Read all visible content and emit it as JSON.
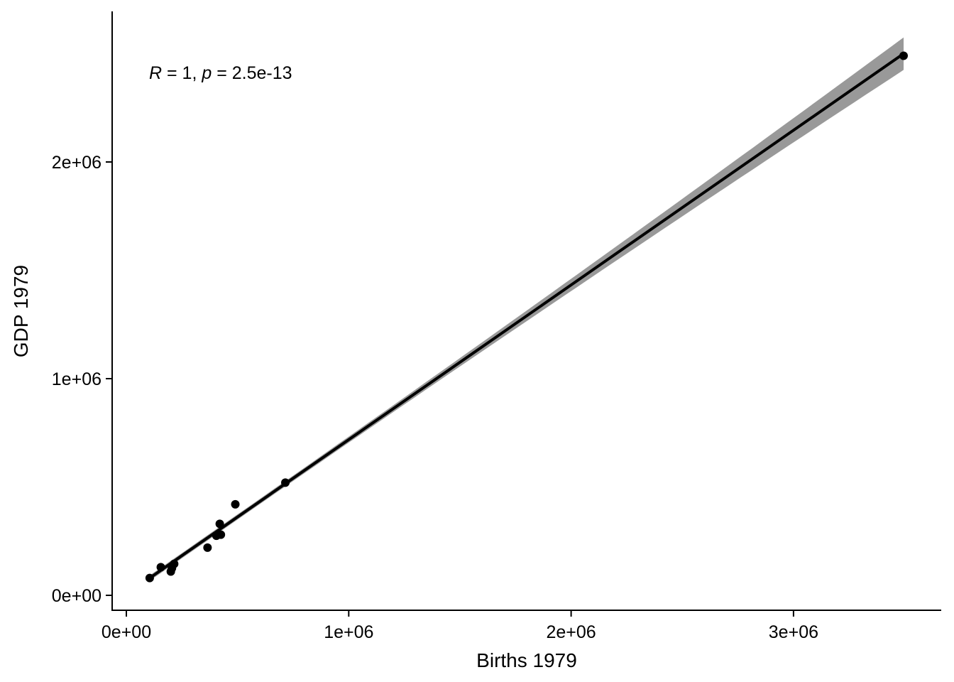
{
  "chart_data": {
    "type": "scatter",
    "xlabel": "Births 1979",
    "ylabel": "GDP 1979",
    "xlim": [
      -60000,
      3650000
    ],
    "ylim": [
      -70000,
      2700000
    ],
    "x_ticks": [
      {
        "value": 0,
        "label": "0e+00"
      },
      {
        "value": 1000000,
        "label": "1e+06"
      },
      {
        "value": 2000000,
        "label": "2e+06"
      },
      {
        "value": 3000000,
        "label": "3e+06"
      }
    ],
    "y_ticks": [
      {
        "value": 0,
        "label": "0e+00"
      },
      {
        "value": 1000000,
        "label": "1e+06"
      },
      {
        "value": 2000000,
        "label": "2e+06"
      }
    ],
    "points": [
      {
        "x": 105000,
        "y": 80000
      },
      {
        "x": 155000,
        "y": 130000
      },
      {
        "x": 200000,
        "y": 110000
      },
      {
        "x": 205000,
        "y": 125000
      },
      {
        "x": 215000,
        "y": 145000
      },
      {
        "x": 365000,
        "y": 220000
      },
      {
        "x": 405000,
        "y": 275000
      },
      {
        "x": 420000,
        "y": 330000
      },
      {
        "x": 425000,
        "y": 280000
      },
      {
        "x": 490000,
        "y": 420000
      },
      {
        "x": 715000,
        "y": 520000
      },
      {
        "x": 3495000,
        "y": 2490000
      }
    ],
    "regression": {
      "x_range": [
        100000,
        3495000
      ],
      "slope": 0.7139,
      "intercept": 4700,
      "ci_halfwidth_low_x": 18000,
      "ci_halfwidth_high_x": 75000,
      "ci_halfwidth_at_mean": 12000,
      "mean_x": 460000
    },
    "annotation": {
      "r_symbol": "R",
      "r_text": " = 1, ",
      "p_symbol": "p",
      "p_text": " = 2.5e-13"
    },
    "grid": false,
    "legend": "none",
    "colors": {
      "points": "#000000",
      "line": "#000000",
      "ribbon": "#999999"
    }
  }
}
